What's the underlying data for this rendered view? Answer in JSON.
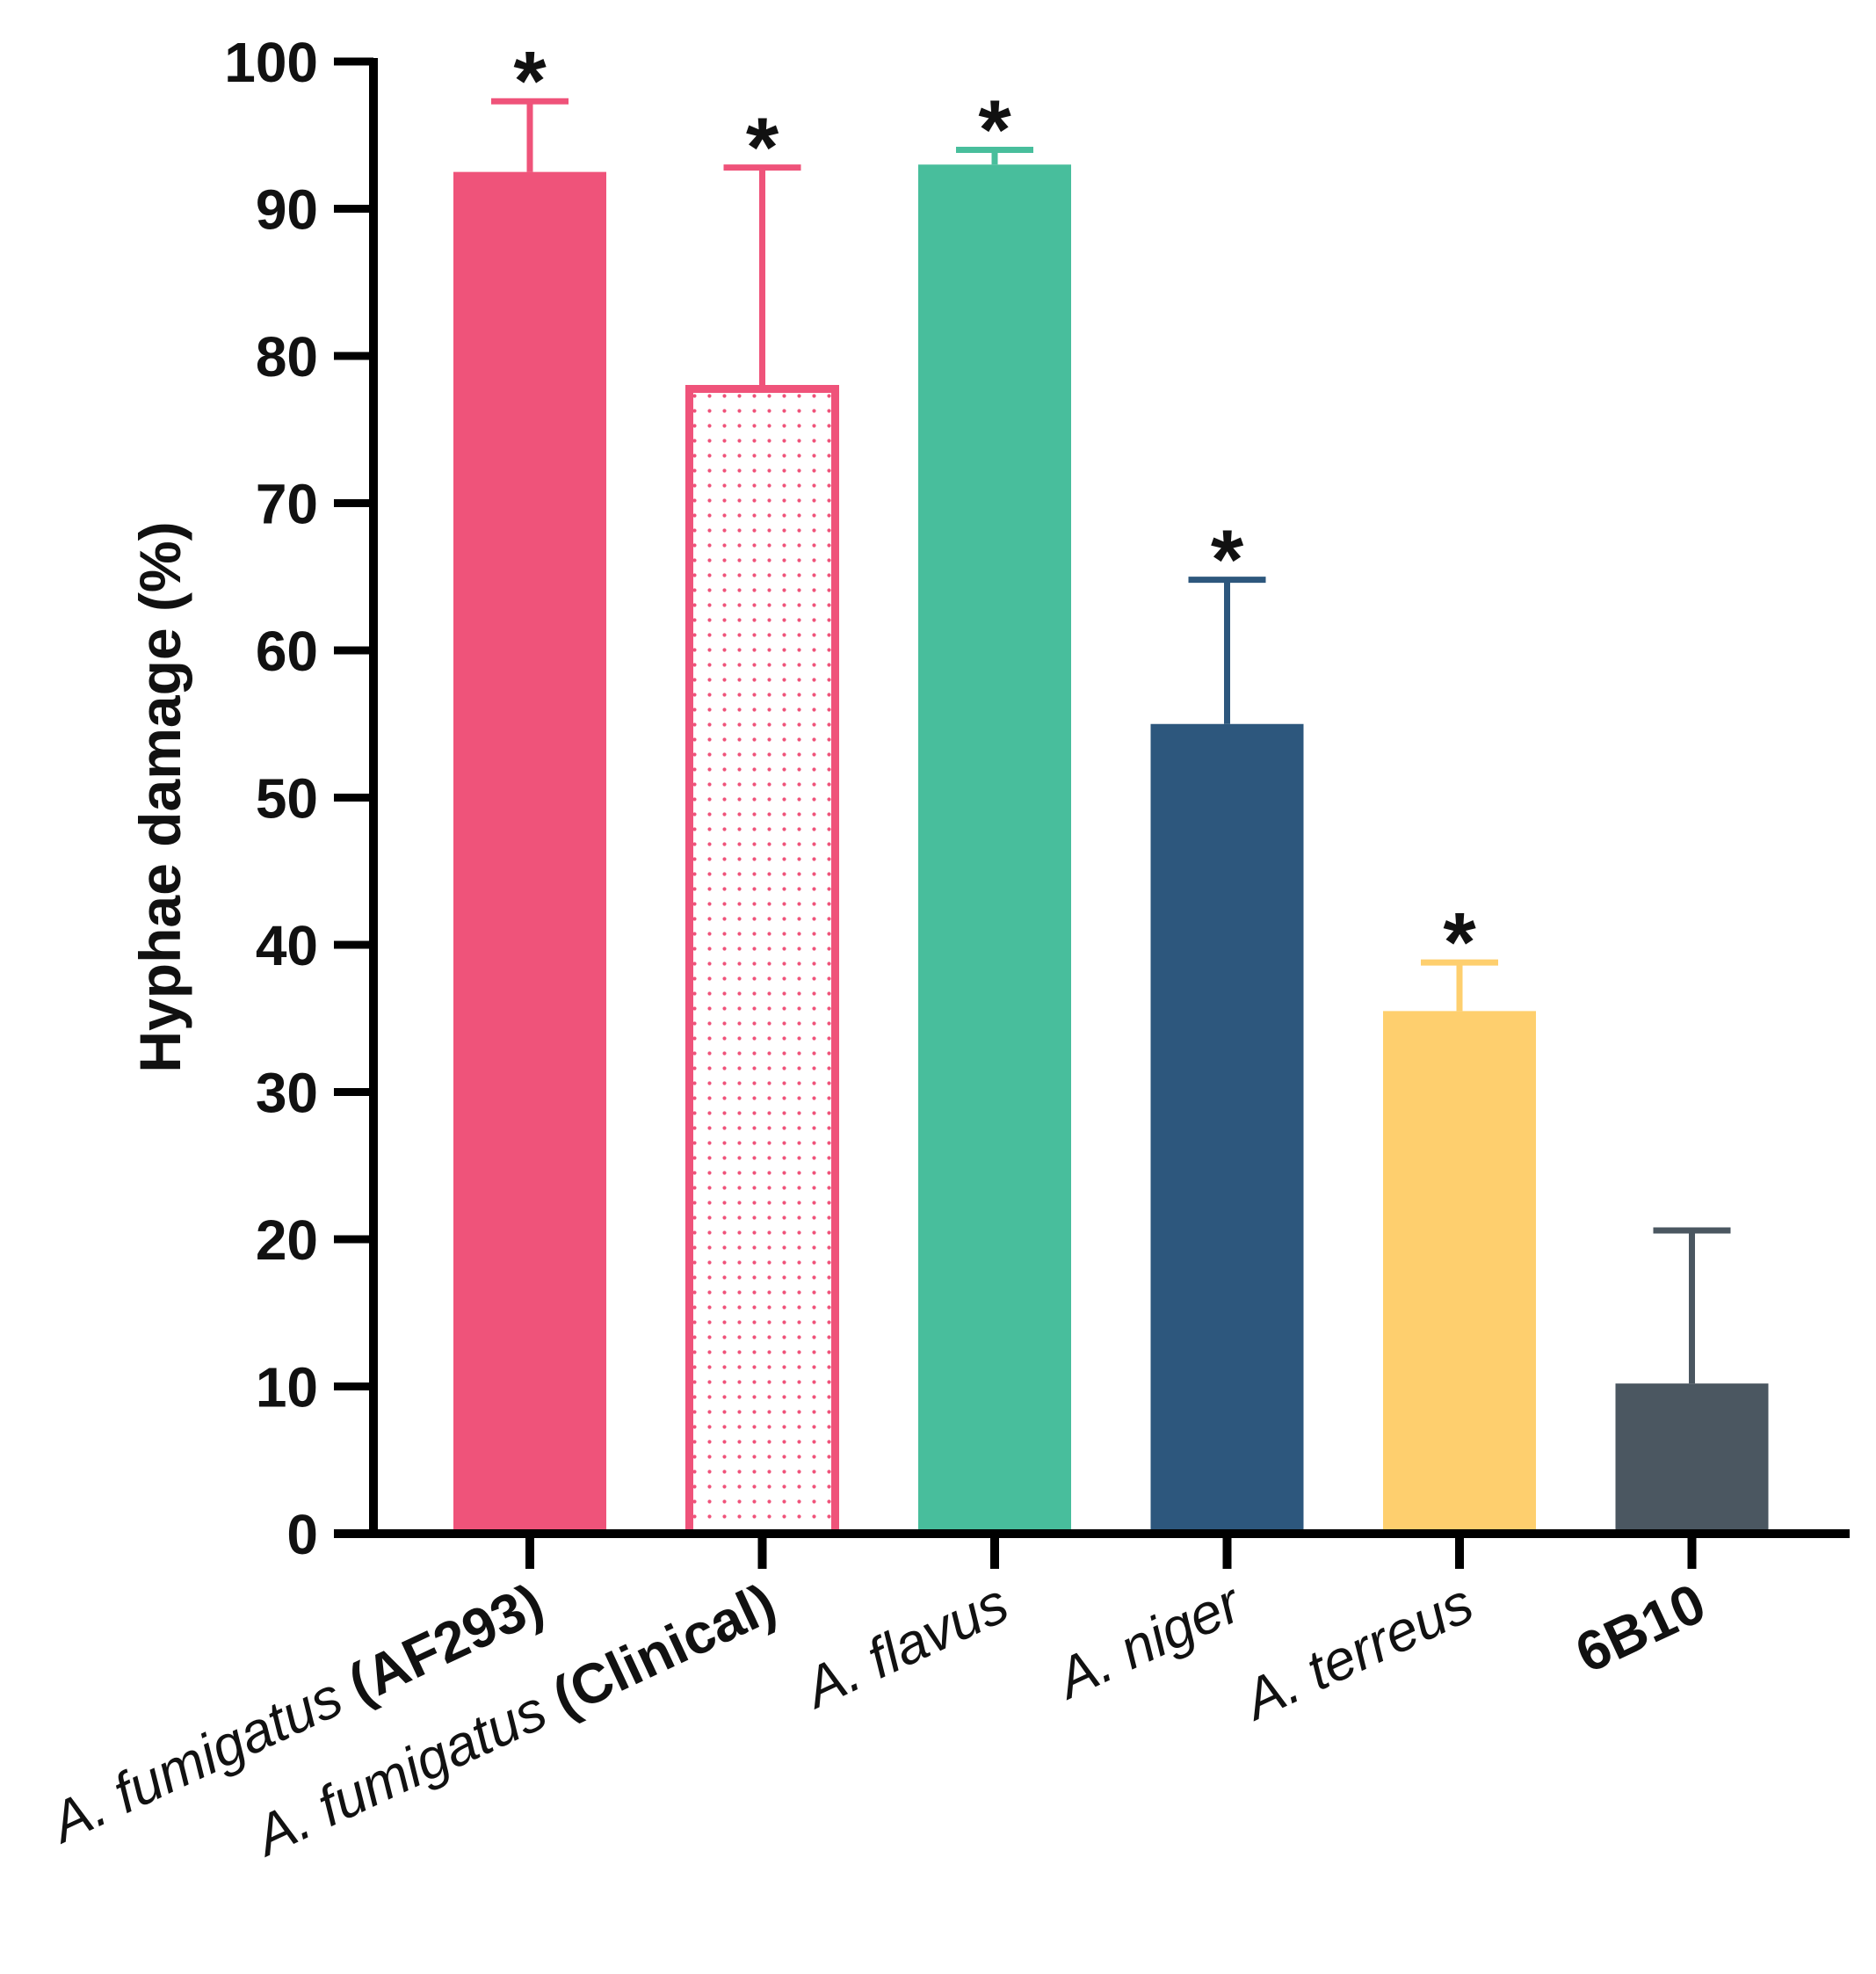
{
  "chart_data": {
    "type": "bar",
    "title": "",
    "xlabel": "",
    "ylabel": "Hyphae damage (%)",
    "ylim": [
      0,
      100
    ],
    "yticks": [
      "0",
      "10",
      "20",
      "30",
      "40",
      "50",
      "60",
      "70",
      "80",
      "90",
      "100"
    ],
    "categories": [
      {
        "italic": "A. fumigatus",
        "bold": "(AF293)"
      },
      {
        "italic": "A. fumigatus",
        "bold": "(Clinical)"
      },
      {
        "italic": "A. flavus",
        "bold": ""
      },
      {
        "italic": "A. niger",
        "bold": ""
      },
      {
        "italic": "A. terreus",
        "bold": ""
      },
      {
        "italic": "",
        "bold": "6B10"
      }
    ],
    "values": [
      92.5,
      78,
      93,
      55,
      35.5,
      10.2
    ],
    "errors": [
      4.8,
      14.8,
      1.0,
      9.8,
      3.3,
      10.4
    ],
    "significance": [
      "*",
      "*",
      "*",
      "*",
      "*",
      ""
    ],
    "colors": [
      "#ef537a",
      "#ef537a",
      "#48be9c",
      "#2d577d",
      "#fecf6e",
      "#4b5761"
    ],
    "patterns": [
      "solid",
      "dotted",
      "solid",
      "solid",
      "solid",
      "solid"
    ]
  }
}
